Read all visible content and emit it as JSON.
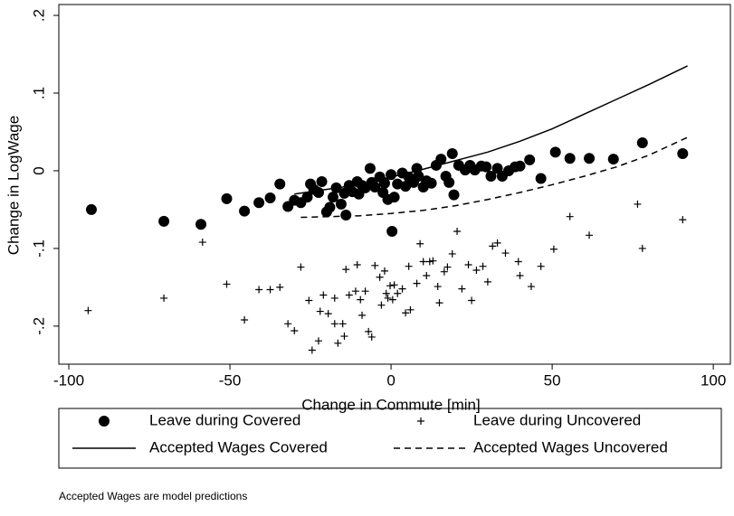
{
  "chart_data": {
    "type": "scatter",
    "xlabel": "Change in Commute [min]",
    "ylabel": "Change in LogWage",
    "note": "Accepted Wages are model predictions",
    "xlim": [
      -103.1,
      105.3
    ],
    "ylim": [
      -0.249,
      0.214
    ],
    "xticks": [
      -100,
      -50,
      0,
      50,
      100
    ],
    "yticks": [
      {
        "value": 0.2,
        "label": ".2"
      },
      {
        "value": 0.1,
        "label": ".1"
      },
      {
        "value": 0,
        "label": "0"
      },
      {
        "value": -0.1,
        "label": "-.1"
      },
      {
        "value": -0.2,
        "label": "-.2"
      }
    ],
    "grid": false,
    "legend": "bottom",
    "series": [
      {
        "name": "Leave during Covered",
        "color": "#000000",
        "marker": "circle",
        "line": "none",
        "x": [
          -93,
          -70.5,
          -59,
          -51,
          -45.5,
          -41,
          -37.5,
          -34.5,
          -32,
          -30,
          -28,
          -26,
          -25,
          -24,
          -21.5,
          -22.5,
          -20,
          -19,
          -18,
          -17,
          -15.5,
          -14.5,
          -14,
          -13,
          -12,
          -10.5,
          -10,
          -9,
          -8,
          -6.5,
          -6,
          -5,
          -3.5,
          -2.5,
          -2,
          -1,
          0,
          0.3,
          1,
          2,
          3.5,
          4.5,
          5.5,
          7,
          8,
          8.5,
          10,
          11,
          12.5,
          14,
          15.5,
          17,
          18,
          19,
          19.5,
          21,
          23,
          24.5,
          26,
          28,
          29.5,
          31,
          33,
          34.5,
          36.5,
          38.5,
          40,
          43,
          46.5,
          51,
          55.5,
          61.5,
          69,
          78,
          90.5
        ],
        "values": [
          -0.05,
          -0.065,
          -0.069,
          -0.036,
          -0.052,
          -0.041,
          -0.035,
          -0.017,
          -0.046,
          -0.038,
          -0.041,
          -0.034,
          -0.017,
          -0.024,
          -0.014,
          -0.028,
          -0.053,
          -0.047,
          -0.034,
          -0.022,
          -0.043,
          -0.029,
          -0.057,
          -0.019,
          -0.027,
          -0.014,
          -0.03,
          -0.019,
          -0.022,
          0.003,
          -0.015,
          -0.021,
          -0.008,
          -0.028,
          -0.016,
          -0.037,
          -0.005,
          -0.078,
          -0.034,
          -0.017,
          -0.003,
          -0.02,
          -0.008,
          -0.015,
          0.003,
          -0.007,
          -0.021,
          -0.013,
          -0.016,
          0.007,
          0.015,
          -0.007,
          -0.015,
          0.022,
          -0.031,
          0.007,
          0.001,
          0.007,
          0.001,
          0.006,
          0.005,
          -0.007,
          0.003,
          -0.007,
          0,
          0.005,
          0.006,
          0.014,
          -0.01,
          0.024,
          0.016,
          0.016,
          0.015,
          0.036,
          0.022
        ]
      },
      {
        "name": "Leave during Uncovered",
        "color": "#000000",
        "marker": "plus",
        "line": "none",
        "x": [
          -94,
          -70.5,
          -58.5,
          -51,
          -45.5,
          -41,
          -37.5,
          -34.5,
          -32,
          -30,
          -28,
          -25.5,
          -24.5,
          -22.5,
          -22,
          -21,
          -19.5,
          -17.5,
          -17.5,
          -16.5,
          -15,
          -14.5,
          -14,
          -13,
          -11,
          -10.5,
          -9.5,
          -9,
          -8,
          -7,
          -6,
          -5,
          -3.5,
          -3,
          -2,
          -1.5,
          -1,
          -0.3,
          0.5,
          1,
          2,
          3.5,
          4.5,
          5.5,
          6,
          8,
          9,
          10,
          11,
          12,
          13,
          14.5,
          15,
          16.5,
          17.5,
          19,
          20.5,
          22,
          24,
          25,
          26.5,
          28.5,
          30,
          31.5,
          33,
          35.5,
          39.5,
          40,
          43.5,
          46.5,
          50.5,
          55.5,
          61.5,
          76.5,
          78,
          90.5
        ],
        "values": [
          -0.18,
          -0.164,
          -0.092,
          -0.146,
          -0.192,
          -0.153,
          -0.153,
          -0.15,
          -0.197,
          -0.206,
          -0.124,
          -0.167,
          -0.231,
          -0.219,
          -0.181,
          -0.16,
          -0.184,
          -0.164,
          -0.197,
          -0.222,
          -0.197,
          -0.213,
          -0.127,
          -0.16,
          -0.155,
          -0.121,
          -0.166,
          -0.186,
          -0.155,
          -0.207,
          -0.214,
          -0.122,
          -0.137,
          -0.173,
          -0.129,
          -0.158,
          -0.164,
          -0.148,
          -0.166,
          -0.147,
          -0.158,
          -0.152,
          -0.183,
          -0.123,
          -0.179,
          -0.145,
          -0.094,
          -0.117,
          -0.135,
          -0.117,
          -0.116,
          -0.149,
          -0.17,
          -0.13,
          -0.124,
          -0.107,
          -0.078,
          -0.152,
          -0.121,
          -0.167,
          -0.128,
          -0.123,
          -0.143,
          -0.097,
          -0.093,
          -0.106,
          -0.117,
          -0.135,
          -0.149,
          -0.123,
          -0.101,
          -0.059,
          -0.083,
          -0.043,
          -0.1,
          -0.063
        ]
      },
      {
        "name": "Accepted Wages Covered",
        "color": "#000000",
        "marker": "none",
        "line": "solid",
        "x": [
          -30,
          -15,
          0,
          10,
          20,
          30,
          40,
          50,
          60,
          70,
          80,
          92
        ],
        "values": [
          -0.03,
          -0.021,
          -0.008,
          0.002,
          0.013,
          0.024,
          0.038,
          0.054,
          0.073,
          0.092,
          0.111,
          0.135
        ]
      },
      {
        "name": "Accepted Wages Uncovered",
        "color": "#000000",
        "marker": "none",
        "line": "dashed",
        "x": [
          -28,
          -10,
          0,
          10,
          20,
          30,
          40,
          50,
          60,
          70,
          80,
          92
        ],
        "values": [
          -0.06,
          -0.058,
          -0.055,
          -0.051,
          -0.045,
          -0.037,
          -0.028,
          -0.018,
          -0.007,
          0.005,
          0.02,
          0.043
        ]
      }
    ]
  }
}
